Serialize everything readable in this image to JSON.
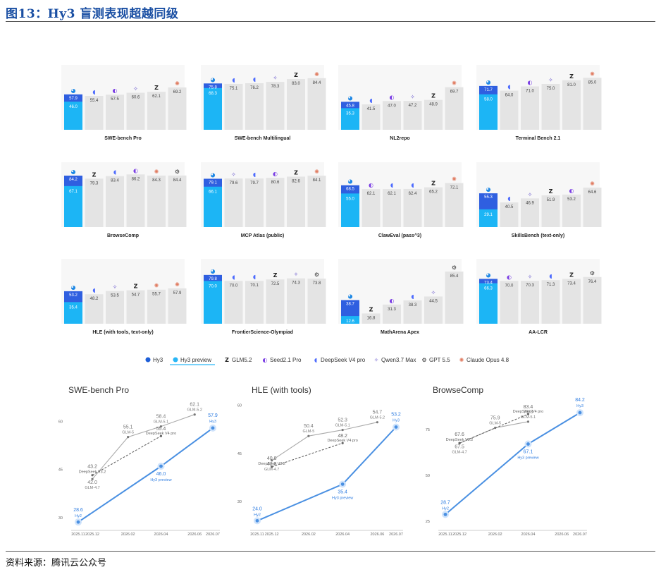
{
  "title": "图13：Hy3 盲测表现超越同级",
  "source": "资料来源：腾讯云公众号",
  "legend": [
    {
      "name": "Hy3",
      "icon": "hy3-icon",
      "color": "#1e5fd8"
    },
    {
      "name": "Hy3 preview",
      "icon": "hy3-preview-icon",
      "color": "#29b6f6"
    },
    {
      "name": "GLM5.2",
      "icon": "glm-icon",
      "color": "#222222"
    },
    {
      "name": "Seed2.1 Pro",
      "icon": "seed-icon",
      "color": "#7b3fe4"
    },
    {
      "name": "DeepSeek V4 pro",
      "icon": "deepseek-icon",
      "color": "#4d6bfe"
    },
    {
      "name": "Qwen3.7 Max",
      "icon": "qwen-icon",
      "color": "#6a5acd"
    },
    {
      "name": "GPT 5.5",
      "icon": "gpt-icon",
      "color": "#333333"
    },
    {
      "name": "Claude Opus 4.8",
      "icon": "claude-icon",
      "color": "#e07a5f"
    }
  ],
  "chart_data": [
    {
      "type": "bar",
      "title": "SWE-bench Pro",
      "hy3": 57.9,
      "hy3_preview": 46.0,
      "bars": [
        {
          "model": "deepseek",
          "value": 55.4
        },
        {
          "model": "seed",
          "value": 57.5
        },
        {
          "model": "qwen",
          "value": 60.6
        },
        {
          "model": "glm",
          "value": 62.1
        },
        {
          "model": "claude",
          "value": 69.2
        }
      ]
    },
    {
      "type": "bar",
      "title": "SWE-bench Multilingual",
      "hy3": 75.8,
      "hy3_preview": 68.3,
      "bars": [
        {
          "model": "deepseek",
          "value": 75.1
        },
        {
          "model": "deepseek",
          "value": 76.2
        },
        {
          "model": "qwen",
          "value": 78.3
        },
        {
          "model": "glm",
          "value": 83.0
        },
        {
          "model": "claude",
          "value": 84.4
        }
      ]
    },
    {
      "type": "bar",
      "title": "NL2repo",
      "hy3": 45.8,
      "hy3_preview": 35.3,
      "bars": [
        {
          "model": "deepseek",
          "value": 41.5
        },
        {
          "model": "seed",
          "value": 47.0
        },
        {
          "model": "qwen",
          "value": 47.2
        },
        {
          "model": "glm",
          "value": 48.9
        },
        {
          "model": "claude",
          "value": 69.7
        }
      ]
    },
    {
      "type": "bar",
      "title": "Terminal Bench 2.1",
      "hy3": 71.7,
      "hy3_preview": 58.0,
      "bars": [
        {
          "model": "deepseek",
          "value": 64.0
        },
        {
          "model": "seed",
          "value": 71.0
        },
        {
          "model": "qwen",
          "value": 75.0
        },
        {
          "model": "glm",
          "value": 81.0
        },
        {
          "model": "claude",
          "value": 85.0
        }
      ]
    },
    {
      "type": "bar",
      "title": "BrowseComp",
      "hy3": 84.2,
      "hy3_preview": 67.1,
      "bars": [
        {
          "model": "glm",
          "value": 79.3
        },
        {
          "model": "deepseek",
          "value": 83.4
        },
        {
          "model": "seed",
          "value": 86.2
        },
        {
          "model": "claude",
          "value": 84.3
        },
        {
          "model": "gpt",
          "value": 84.4
        }
      ]
    },
    {
      "type": "bar",
      "title": "MCP Atlas (public)",
      "hy3": 79.1,
      "hy3_preview": 66.1,
      "bars": [
        {
          "model": "qwen",
          "value": 79.6
        },
        {
          "model": "deepseek",
          "value": 79.7
        },
        {
          "model": "seed",
          "value": 80.6
        },
        {
          "model": "glm",
          "value": 82.6
        },
        {
          "model": "claude",
          "value": 84.1
        }
      ]
    },
    {
      "type": "bar",
      "title": "ClawEval (pass^3)",
      "hy3": 68.5,
      "hy3_preview": 55.0,
      "bars": [
        {
          "model": "seed",
          "value": 62.1
        },
        {
          "model": "deepseek",
          "value": 62.1
        },
        {
          "model": "deepseek",
          "value": 62.4
        },
        {
          "model": "glm",
          "value": 65.2
        },
        {
          "model": "claude",
          "value": 72.1
        }
      ]
    },
    {
      "type": "bar",
      "title": "SkillsBench (text-only)",
      "hy3": 55.3,
      "hy3_preview": 29.1,
      "bars": [
        {
          "model": "deepseek",
          "value": 40.5
        },
        {
          "model": "qwen",
          "value": 46.9
        },
        {
          "model": "glm",
          "value": 51.9
        },
        {
          "model": "seed",
          "value": 53.2
        },
        {
          "model": "claude",
          "value": 64.6
        }
      ]
    },
    {
      "type": "bar",
      "title": "HLE (with tools, text-only)",
      "hy3": 53.2,
      "hy3_preview": 35.4,
      "bars": [
        {
          "model": "deepseek",
          "value": 48.2
        },
        {
          "model": "qwen",
          "value": 53.5
        },
        {
          "model": "glm",
          "value": 54.7
        },
        {
          "model": "claude",
          "value": 55.7
        },
        {
          "model": "claude",
          "value": 57.9
        }
      ]
    },
    {
      "type": "bar",
      "title": "FrontierScience-Olympiad",
      "hy3": 79.8,
      "hy3_preview": 70.0,
      "bars": [
        {
          "model": "deepseek",
          "value": 70.0
        },
        {
          "model": "deepseek",
          "value": 70.1
        },
        {
          "model": "glm",
          "value": 72.5
        },
        {
          "model": "qwen",
          "value": 74.3
        },
        {
          "model": "gpt",
          "value": 73.8
        }
      ]
    },
    {
      "type": "bar",
      "title": "MathArena Apex",
      "hy3": 38.7,
      "hy3_preview": 12.6,
      "bars": [
        {
          "model": "glm",
          "value": 16.8
        },
        {
          "model": "seed",
          "value": 31.3
        },
        {
          "model": "deepseek",
          "value": 38.3
        },
        {
          "model": "qwen",
          "value": 44.5
        },
        {
          "model": "gpt",
          "value": 85.4
        }
      ]
    },
    {
      "type": "bar",
      "title": "AA-LCR",
      "hy3": 73.4,
      "hy3_preview": 66.3,
      "bars": [
        {
          "model": "seed",
          "value": 70.0
        },
        {
          "model": "qwen",
          "value": 70.3
        },
        {
          "model": "deepseek",
          "value": 71.3
        },
        {
          "model": "glm",
          "value": 73.4
        },
        {
          "model": "gpt",
          "value": 76.4
        }
      ]
    },
    {
      "type": "line",
      "title": "SWE-bench Pro",
      "x": [
        "2025.11",
        "2025.12",
        "2026.02",
        "2026.04",
        "2026.06",
        "2026.07"
      ],
      "y_ticks": [
        30,
        45,
        60
      ],
      "ylim": [
        26,
        66
      ],
      "series": [
        {
          "name": "Hy3",
          "points": [
            {
              "x": "2025.11",
              "y": 28.6,
              "label": "Hy2"
            },
            {
              "x": "2026.04",
              "y": 46.0,
              "label": "Hy3 preview"
            },
            {
              "x": "2026.07",
              "y": 57.9,
              "label": "Hy3"
            }
          ]
        },
        {
          "name": "GLM",
          "points": [
            {
              "x": "2025.12",
              "y": 42.0,
              "label": "GLM-4.7"
            },
            {
              "x": "2026.02",
              "y": 55.1,
              "label": "GLM-5"
            },
            {
              "x": "2026.04",
              "y": 58.4,
              "label": "GLM-5.1"
            },
            {
              "x": "2026.06",
              "y": 62.1,
              "label": "GLM-5.2"
            }
          ]
        },
        {
          "name": "DeepSeek",
          "points": [
            {
              "x": "2025.12",
              "y": 43.2,
              "label": "DeepSeek V3.2"
            },
            {
              "x": "2026.04",
              "y": 55.4,
              "label": "DeepSeek V4 pro"
            }
          ]
        }
      ]
    },
    {
      "type": "line",
      "title": "HLE (with tools)",
      "x": [
        "2025.11",
        "2025.12",
        "2026.02",
        "2026.04",
        "2026.06",
        "2026.07"
      ],
      "y_ticks": [
        30,
        45,
        60
      ],
      "ylim": [
        21,
        61
      ],
      "series": [
        {
          "name": "Hy3",
          "points": [
            {
              "x": "2025.11",
              "y": 24.0,
              "label": "Hy2"
            },
            {
              "x": "2026.04",
              "y": 35.4,
              "label": "Hy3 preview"
            },
            {
              "x": "2026.07",
              "y": 53.2,
              "label": "Hy3"
            }
          ]
        },
        {
          "name": "GLM",
          "points": [
            {
              "x": "2025.12",
              "y": 42.8,
              "label": "GLM-4.7"
            },
            {
              "x": "2026.02",
              "y": 50.4,
              "label": "GLM-5"
            },
            {
              "x": "2026.04",
              "y": 52.3,
              "label": "GLM-5.1"
            },
            {
              "x": "2026.06",
              "y": 54.7,
              "label": "GLM-5.2"
            }
          ]
        },
        {
          "name": "DeepSeek",
          "points": [
            {
              "x": "2025.12",
              "y": 40.8,
              "label": "DeepSeek V3.2"
            },
            {
              "x": "2026.04",
              "y": 48.2,
              "label": "DeepSeek V4 pro"
            }
          ]
        }
      ]
    },
    {
      "type": "line",
      "title": "BrowseComp",
      "x": [
        "2025.11",
        "2025.12",
        "2026.02",
        "2026.04",
        "2026.06",
        "2026.07"
      ],
      "y_ticks": [
        25,
        50,
        75
      ],
      "ylim": [
        20,
        90
      ],
      "series": [
        {
          "name": "Hy3",
          "points": [
            {
              "x": "2025.11",
              "y": 28.7,
              "label": "Hy2"
            },
            {
              "x": "2026.04",
              "y": 67.1,
              "label": "Hy3 preview"
            },
            {
              "x": "2026.07",
              "y": 84.2,
              "label": "Hy3"
            }
          ]
        },
        {
          "name": "GLM",
          "points": [
            {
              "x": "2025.12",
              "y": 67.5,
              "label": "GLM-4.7"
            },
            {
              "x": "2026.02",
              "y": 75.9,
              "label": "GLM-5"
            },
            {
              "x": "2026.04",
              "y": 79.3,
              "label": "GLM-5.1"
            }
          ]
        },
        {
          "name": "DeepSeek",
          "points": [
            {
              "x": "2025.12",
              "y": 67.6,
              "label": "DeepSeek V3.2"
            },
            {
              "x": "2026.04",
              "y": 83.4,
              "label": "DeepSeek V4 pro"
            }
          ]
        }
      ]
    }
  ]
}
